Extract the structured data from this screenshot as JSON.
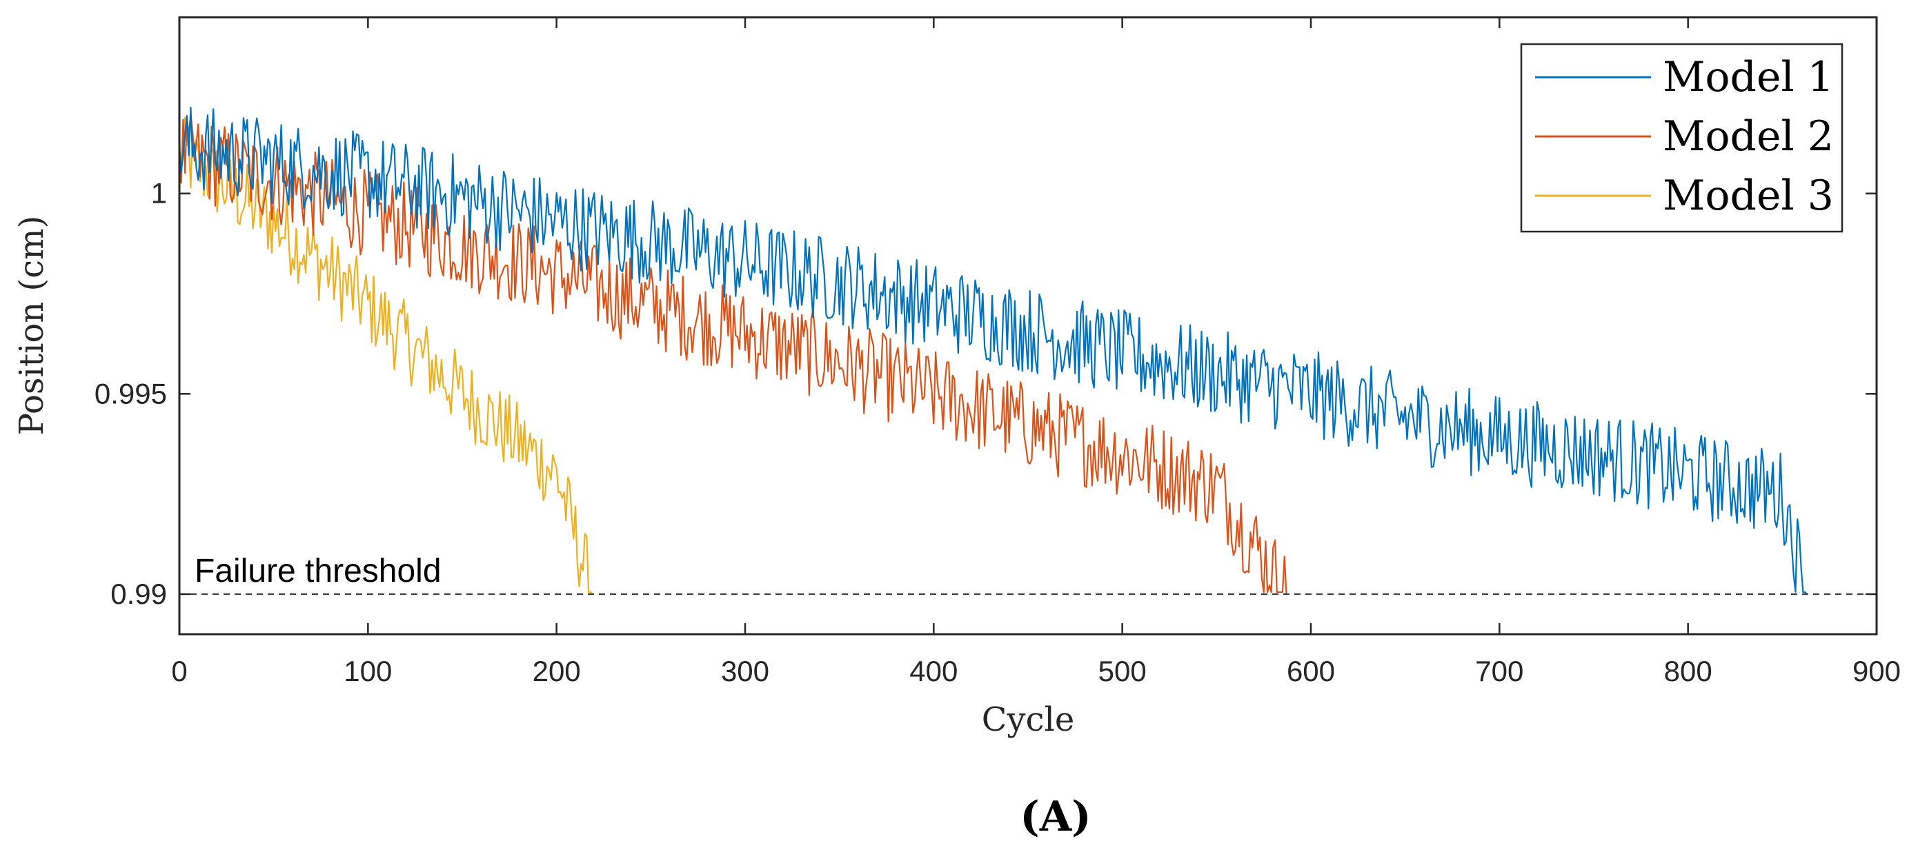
{
  "chart_data": {
    "type": "line",
    "title": "",
    "xlabel": "Cycle",
    "ylabel": "Position (cm)",
    "xlim": [
      0,
      900
    ],
    "ylim": [
      0.989,
      1.0044
    ],
    "xticks": [
      0,
      100,
      200,
      300,
      400,
      500,
      600,
      700,
      800,
      900
    ],
    "xtick_labels": [
      "0",
      "100",
      "200",
      "300",
      "400",
      "500",
      "600",
      "700",
      "800",
      "900"
    ],
    "yticks": [
      0.99,
      0.995,
      1.0
    ],
    "ytick_labels": [
      "0.99",
      "0.995",
      "1"
    ],
    "legend_position": "top-right",
    "grid": false,
    "threshold": {
      "value": 0.99,
      "label": "Failure threshold"
    },
    "panel_label": "(A)",
    "series": [
      {
        "name": "Model 1",
        "color": "#0072BD",
        "failure_cycle": 863,
        "trend": [
          [
            0,
            1.0012
          ],
          [
            50,
            1.0008
          ],
          [
            100,
            1.0004
          ],
          [
            150,
            0.9999
          ],
          [
            200,
            0.9993
          ],
          [
            250,
            0.9988
          ],
          [
            300,
            0.9983
          ],
          [
            350,
            0.9978
          ],
          [
            400,
            0.9972
          ],
          [
            450,
            0.9966
          ],
          [
            500,
            0.996
          ],
          [
            550,
            0.9955
          ],
          [
            600,
            0.995
          ],
          [
            650,
            0.9944
          ],
          [
            700,
            0.9939
          ],
          [
            750,
            0.9935
          ],
          [
            800,
            0.993
          ],
          [
            850,
            0.9925
          ],
          [
            863,
            0.99
          ]
        ],
        "noise_amplitude": 0.0011
      },
      {
        "name": "Model 2",
        "color": "#D95319",
        "failure_cycle": 587,
        "trend": [
          [
            0,
            1.001
          ],
          [
            50,
            1.0003
          ],
          [
            100,
            0.9995
          ],
          [
            150,
            0.9987
          ],
          [
            200,
            0.998
          ],
          [
            250,
            0.9972
          ],
          [
            300,
            0.9965
          ],
          [
            350,
            0.9958
          ],
          [
            400,
            0.995
          ],
          [
            450,
            0.9942
          ],
          [
            500,
            0.9935
          ],
          [
            550,
            0.9927
          ],
          [
            587,
            0.99
          ]
        ],
        "noise_amplitude": 0.0011
      },
      {
        "name": "Model 3",
        "color": "#EDB120",
        "failure_cycle": 219,
        "trend": [
          [
            0,
            1.001
          ],
          [
            50,
            0.9993
          ],
          [
            100,
            0.9972
          ],
          [
            150,
            0.995
          ],
          [
            200,
            0.993
          ],
          [
            219,
            0.99
          ]
        ],
        "noise_amplitude": 0.001
      }
    ]
  }
}
